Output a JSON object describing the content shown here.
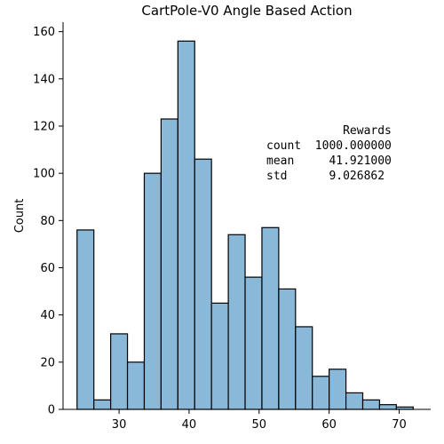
{
  "chart_data": {
    "type": "bar",
    "title": "CartPole-V0 Angle Based Action",
    "xlabel": "",
    "ylabel": "Count",
    "bar_color": "#89b8d9",
    "edge_color": "#000000",
    "xlim": [
      22,
      74.5
    ],
    "ylim": [
      0,
      164
    ],
    "xticks": [
      30,
      40,
      50,
      60,
      70
    ],
    "yticks": [
      0,
      20,
      40,
      60,
      80,
      100,
      120,
      140,
      160
    ],
    "bins": [
      {
        "x0": 24.0,
        "x1": 26.4,
        "count": 76
      },
      {
        "x0": 26.4,
        "x1": 28.8,
        "count": 4
      },
      {
        "x0": 28.8,
        "x1": 31.2,
        "count": 32
      },
      {
        "x0": 31.2,
        "x1": 33.6,
        "count": 20
      },
      {
        "x0": 33.6,
        "x1": 36.0,
        "count": 100
      },
      {
        "x0": 36.0,
        "x1": 38.4,
        "count": 123
      },
      {
        "x0": 38.4,
        "x1": 40.8,
        "count": 156
      },
      {
        "x0": 40.8,
        "x1": 43.2,
        "count": 106
      },
      {
        "x0": 43.2,
        "x1": 45.6,
        "count": 45
      },
      {
        "x0": 45.6,
        "x1": 48.0,
        "count": 74
      },
      {
        "x0": 48.0,
        "x1": 50.4,
        "count": 56
      },
      {
        "x0": 50.4,
        "x1": 52.8,
        "count": 77
      },
      {
        "x0": 52.8,
        "x1": 55.2,
        "count": 51
      },
      {
        "x0": 55.2,
        "x1": 57.6,
        "count": 35
      },
      {
        "x0": 57.6,
        "x1": 60.0,
        "count": 14
      },
      {
        "x0": 60.0,
        "x1": 62.4,
        "count": 17
      },
      {
        "x0": 62.4,
        "x1": 64.8,
        "count": 7
      },
      {
        "x0": 64.8,
        "x1": 67.2,
        "count": 4
      },
      {
        "x0": 67.2,
        "x1": 69.6,
        "count": 2
      },
      {
        "x0": 69.6,
        "x1": 72.0,
        "count": 1
      }
    ],
    "stats_lines": [
      "           Rewards",
      "count  1000.000000",
      "mean     41.921000",
      "std      9.026862"
    ]
  }
}
